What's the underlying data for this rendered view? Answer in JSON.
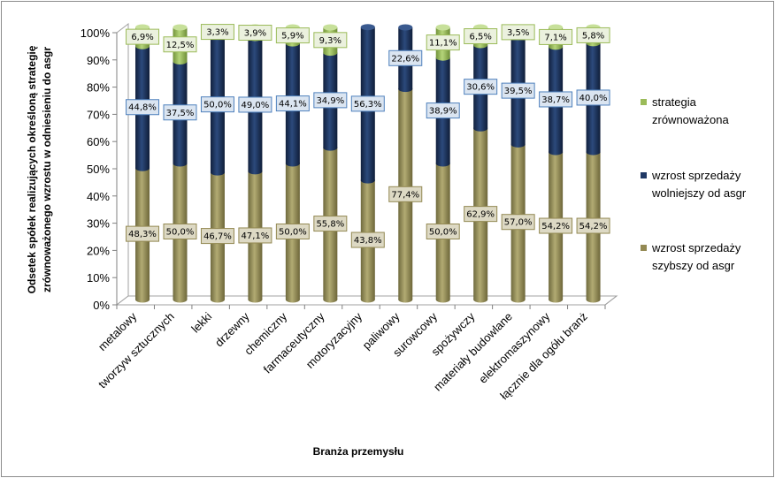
{
  "chart_data": {
    "type": "bar",
    "stacked": true,
    "percent": true,
    "categories": [
      "metalowy",
      "tworzyw sztucznych",
      "lekki",
      "drzewny",
      "chemiczny",
      "farmaceutyczny",
      "motoryzacyjny",
      "paliwowy",
      "surowcowy",
      "spożywczy",
      "materiały budowlane",
      "elektromaszynowy",
      "łącznie dla ogółu branż"
    ],
    "series": [
      {
        "name": "wzrost sprzedaży szybszy od asgr",
        "color": "#938953",
        "values": [
          48.3,
          50.0,
          46.7,
          47.1,
          50.0,
          55.8,
          43.8,
          77.4,
          50.0,
          62.9,
          57.0,
          54.2,
          54.2
        ],
        "labels": [
          "48,3%",
          "50,0%",
          "46,7%",
          "47,1%",
          "50,0%",
          "55,8%",
          "43,8%",
          "77,4%",
          "50,0%",
          "62,9%",
          "57,0%",
          "54,2%",
          "54,2%"
        ]
      },
      {
        "name": "wzrost sprzedaży wolniejszy od asgr",
        "color": "#1f3864",
        "values": [
          44.8,
          37.5,
          50.0,
          49.0,
          44.1,
          34.9,
          56.3,
          22.6,
          38.9,
          30.6,
          39.5,
          38.7,
          40.0
        ],
        "labels": [
          "44,8%",
          "37,5%",
          "50,0%",
          "49,0%",
          "44,1%",
          "34,9%",
          "56,3%",
          "22,6%",
          "38,9%",
          "30,6%",
          "39,5%",
          "38,7%",
          "40,0%"
        ]
      },
      {
        "name": "strategia zrównoważona",
        "color": "#9bbb59",
        "values": [
          6.9,
          12.5,
          3.3,
          3.9,
          5.9,
          9.3,
          0,
          0,
          11.1,
          6.5,
          3.5,
          7.1,
          5.8
        ],
        "labels": [
          "6,9%",
          "12,5%",
          "3,3%",
          "3,9%",
          "5,9%",
          "9,3%",
          "",
          "",
          "11,1%",
          "6,5%",
          "3,5%",
          "7,1%",
          "5,8%"
        ]
      }
    ],
    "legend_order": [
      2,
      1,
      0
    ],
    "legend_lines": [
      [
        "strategia",
        "zrównoważona"
      ],
      [
        "wzrost sprzedaży",
        "wolniejszy od asgr"
      ],
      [
        "wzrost sprzedaży",
        "szybszy od asgr"
      ]
    ],
    "label_styles": [
      {
        "fill": "#ddd9c4",
        "stroke": "#938953"
      },
      {
        "fill": "#dbe5f1",
        "stroke": "#4f81bd"
      },
      {
        "fill": "#ebf1de",
        "stroke": "#9bbb59"
      }
    ],
    "yticks": [
      "0%",
      "10%",
      "20%",
      "30%",
      "40%",
      "50%",
      "60%",
      "70%",
      "80%",
      "90%",
      "100%"
    ],
    "ylim": [
      0,
      100
    ],
    "xlabel": "Branża przemysłu",
    "ylabel_lines": [
      "Odsetek spółek realizujących określoną strategię",
      "zrównoważonego wzrostu w odniesieniu do asgr"
    ],
    "grid": false,
    "legend_position": "right"
  }
}
